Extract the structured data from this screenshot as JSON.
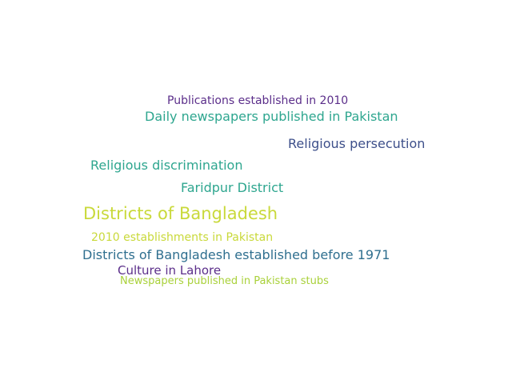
{
  "word_cloud": {
    "words": [
      {
        "text": "Publications established in 2010",
        "color": "#5b2e8a"
      },
      {
        "text": "Daily newspapers published in Pakistan",
        "color": "#2ea68f"
      },
      {
        "text": "Religious persecution",
        "color": "#3d4f8a"
      },
      {
        "text": "Religious discrimination",
        "color": "#2ea68f"
      },
      {
        "text": "Faridpur District",
        "color": "#2ea68f"
      },
      {
        "text": "Districts of Bangladesh",
        "color": "#c9d93a"
      },
      {
        "text": "2010 establishments in Pakistan",
        "color": "#c9d93a"
      },
      {
        "text": "Districts of Bangladesh established before 1971",
        "color": "#2f6f8f"
      },
      {
        "text": "Culture in Lahore",
        "color": "#5b2e8a"
      },
      {
        "text": "Newspapers published in Pakistan stubs",
        "color": "#a9d13a"
      }
    ]
  }
}
